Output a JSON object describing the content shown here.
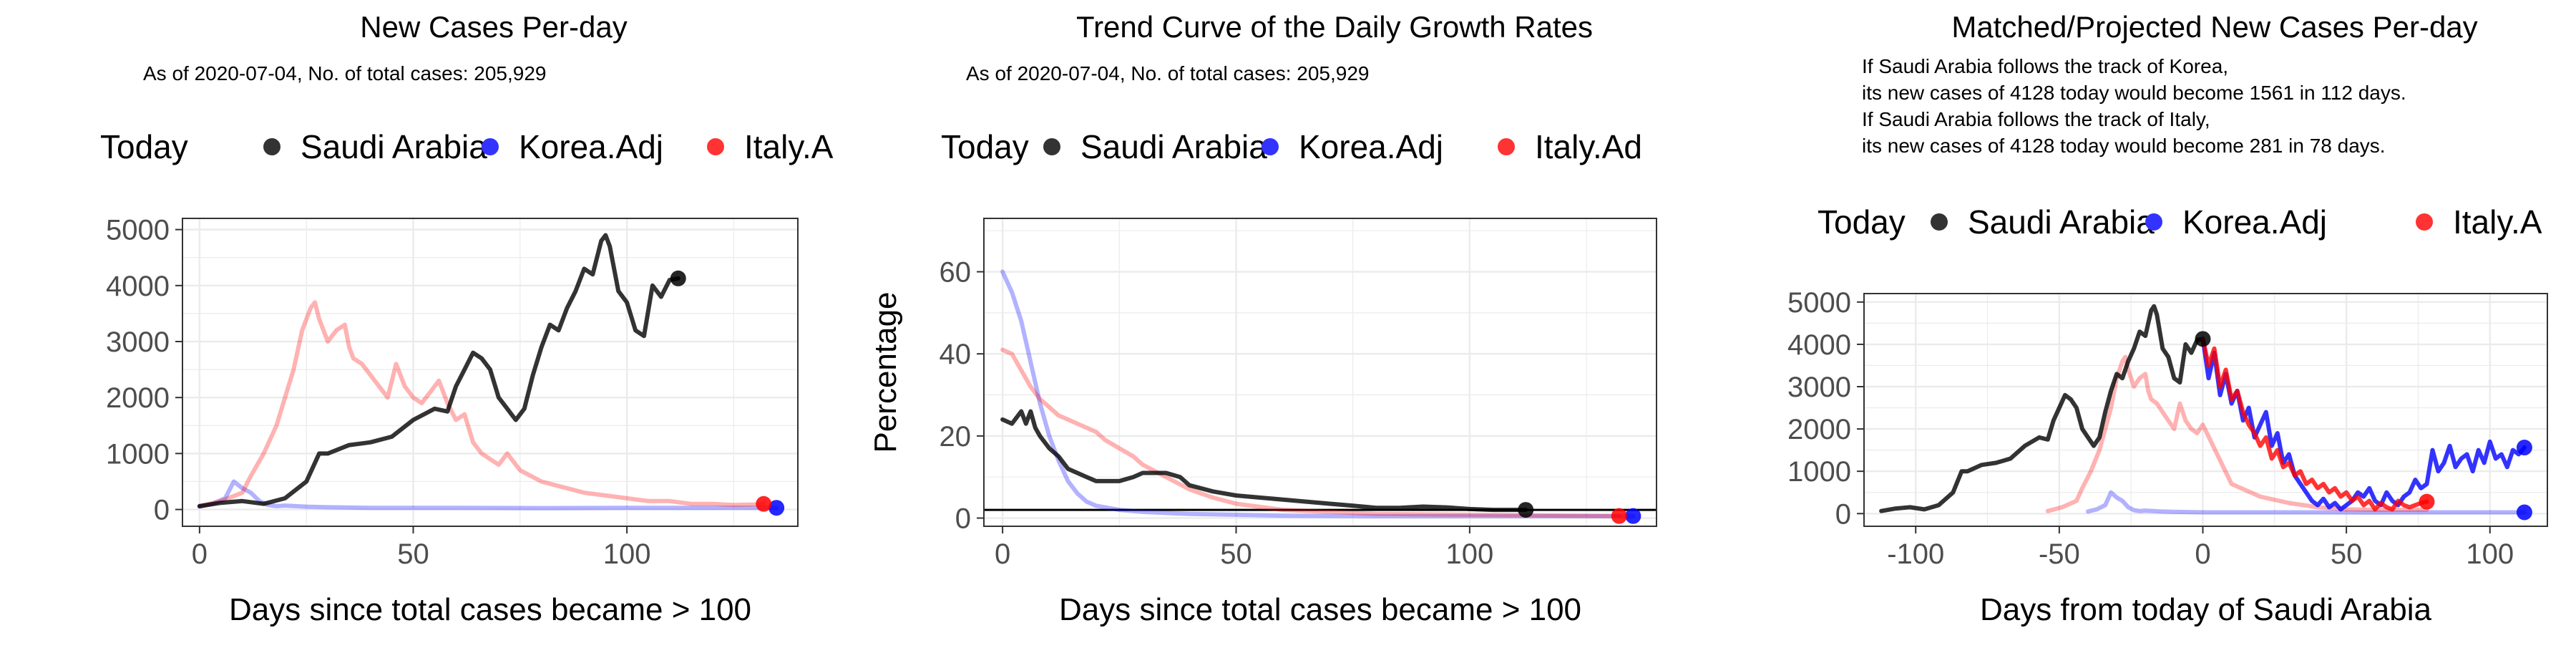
{
  "chart_data": [
    {
      "type": "line",
      "title": "New Cases Per-day",
      "subtitle": "As of 2020-07-04, No. of total cases: 205,929",
      "xlabel": "Days since total cases became > 100",
      "ylabel": "",
      "xlim": [
        -4,
        140
      ],
      "ylim": [
        -300,
        5200
      ],
      "xticks": [
        0,
        50,
        100
      ],
      "yticks": [
        0,
        1000,
        2000,
        3000,
        4000,
        5000
      ],
      "grid": true,
      "legend": {
        "position": "top",
        "title": "Today",
        "labels": [
          "Saudi Arabia",
          "Korea.Adj",
          "Italy.A"
        ]
      },
      "series": [
        {
          "name": "Saudi Arabia",
          "color": "#000000",
          "opacity": 0.8,
          "x": [
            0,
            5,
            10,
            15,
            20,
            25,
            28,
            30,
            35,
            40,
            45,
            50,
            55,
            58,
            60,
            62,
            64,
            66,
            68,
            70,
            72,
            74,
            76,
            78,
            80,
            82,
            84,
            86,
            88,
            90,
            92,
            94,
            95,
            96,
            98,
            100,
            102,
            104,
            106,
            108,
            110,
            112
          ],
          "y": [
            60,
            120,
            150,
            100,
            200,
            500,
            1000,
            1000,
            1150,
            1200,
            1300,
            1600,
            1800,
            1750,
            2200,
            2500,
            2800,
            2700,
            2500,
            2000,
            1800,
            1600,
            1800,
            2400,
            2900,
            3300,
            3200,
            3600,
            3900,
            4300,
            4200,
            4800,
            4900,
            4700,
            3900,
            3700,
            3200,
            3100,
            4000,
            3800,
            4100,
            4128
          ],
          "end_marker": {
            "x": 112,
            "y": 4128
          }
        },
        {
          "name": "Korea.Adj",
          "color": "#0000ff",
          "opacity": 0.3,
          "x": [
            0,
            3,
            6,
            8,
            10,
            12,
            14,
            16,
            18,
            20,
            25,
            30,
            40,
            50,
            60,
            80,
            100,
            120,
            135
          ],
          "y": [
            50,
            100,
            200,
            500,
            380,
            300,
            150,
            80,
            60,
            70,
            50,
            40,
            30,
            30,
            30,
            25,
            30,
            30,
            30
          ],
          "end_marker": {
            "x": 135,
            "y": 30
          }
        },
        {
          "name": "Italy.A",
          "color": "#ff0000",
          "opacity": 0.3,
          "x": [
            0,
            5,
            10,
            12,
            15,
            18,
            20,
            22,
            24,
            26,
            27,
            28,
            30,
            32,
            34,
            35,
            36,
            38,
            40,
            42,
            44,
            46,
            48,
            50,
            52,
            54,
            56,
            58,
            60,
            62,
            64,
            66,
            68,
            70,
            72,
            75,
            80,
            85,
            90,
            95,
            100,
            105,
            110,
            115,
            120,
            125,
            130,
            132
          ],
          "y": [
            60,
            150,
            300,
            600,
            1000,
            1500,
            2000,
            2500,
            3200,
            3600,
            3700,
            3400,
            3000,
            3200,
            3300,
            2900,
            2700,
            2600,
            2400,
            2200,
            2000,
            2600,
            2200,
            2000,
            1900,
            2100,
            2300,
            1900,
            1600,
            1700,
            1200,
            1000,
            900,
            800,
            1000,
            700,
            500,
            400,
            300,
            250,
            200,
            150,
            150,
            100,
            100,
            80,
            90,
            100
          ],
          "end_marker": {
            "x": 132,
            "y": 100
          }
        }
      ]
    },
    {
      "type": "line",
      "title": "Trend Curve of the Daily Growth Rates",
      "subtitle": "As of 2020-07-04, No. of total cases: 205,929",
      "xlabel": "Days since total cases became > 100",
      "ylabel": "Percentage",
      "xlim": [
        -4,
        140
      ],
      "ylim": [
        -2,
        73
      ],
      "xticks": [
        0,
        50,
        100
      ],
      "yticks": [
        0,
        20,
        40,
        60
      ],
      "reference_line": 2,
      "grid": true,
      "legend": {
        "position": "top",
        "title": "Today",
        "labels": [
          "Saudi Arabia",
          "Korea.Adj",
          "Italy.Ad"
        ]
      },
      "series": [
        {
          "name": "Saudi Arabia",
          "color": "#000000",
          "opacity": 0.8,
          "x": [
            0,
            2,
            4,
            5,
            6,
            7,
            8,
            10,
            12,
            14,
            16,
            18,
            20,
            22,
            25,
            28,
            30,
            32,
            35,
            38,
            40,
            45,
            50,
            55,
            60,
            65,
            70,
            75,
            80,
            85,
            90,
            95,
            100,
            105,
            110,
            112
          ],
          "y": [
            24,
            23,
            26,
            23,
            26,
            22,
            20,
            17,
            15,
            12,
            11,
            10,
            9,
            9,
            9,
            10,
            11,
            11,
            11,
            10,
            8,
            6.5,
            5.5,
            5,
            4.5,
            4,
            3.5,
            3,
            2.5,
            2.5,
            2.8,
            2.6,
            2.2,
            2,
            2,
            2
          ],
          "end_marker": {
            "x": 112,
            "y": 2
          }
        },
        {
          "name": "Korea.Adj",
          "color": "#0000ff",
          "opacity": 0.3,
          "x": [
            0,
            2,
            4,
            6,
            8,
            10,
            12,
            14,
            16,
            18,
            20,
            25,
            30,
            40,
            60,
            80,
            100,
            120,
            135
          ],
          "y": [
            60,
            55,
            48,
            38,
            28,
            20,
            14,
            9,
            6,
            4,
            3,
            2,
            1.5,
            1,
            0.6,
            0.5,
            0.5,
            0.5,
            0.5
          ],
          "end_marker": {
            "x": 135,
            "y": 0.5
          }
        },
        {
          "name": "Italy.Ad",
          "color": "#ff0000",
          "opacity": 0.3,
          "x": [
            0,
            2,
            4,
            6,
            8,
            10,
            12,
            14,
            16,
            18,
            20,
            22,
            25,
            28,
            30,
            35,
            40,
            45,
            50,
            60,
            70,
            80,
            100,
            120,
            132
          ],
          "y": [
            41,
            40,
            36,
            32,
            29,
            27,
            25,
            24,
            23,
            22,
            21,
            19,
            17,
            15,
            13,
            10,
            7,
            5,
            3.5,
            2,
            1.5,
            1,
            0.8,
            0.6,
            0.5
          ],
          "end_marker": {
            "x": 132,
            "y": 0.5
          }
        }
      ]
    },
    {
      "type": "line",
      "title": "Matched/Projected New Cases Per-day",
      "annotations": [
        "If Saudi Arabia follows the track of Korea,",
        "its new cases of 4128 today would become 1561 in 112 days.",
        "If Saudi Arabia follows the track of Italy,",
        "its new cases of 4128 today would become 281 in 78 days."
      ],
      "xlabel": "Days from today of Saudi Arabia",
      "ylabel": "",
      "xlim": [
        -118,
        120
      ],
      "ylim": [
        -300,
        5200
      ],
      "xticks": [
        -100,
        -50,
        0,
        50,
        100
      ],
      "yticks": [
        0,
        1000,
        2000,
        3000,
        4000,
        5000
      ],
      "grid": true,
      "legend": {
        "position": "top",
        "title": "Today",
        "labels": [
          "Saudi Arabia",
          "Korea.Adj",
          "Italy.A"
        ]
      },
      "series": [
        {
          "name": "Saudi Arabia",
          "color": "#000000",
          "opacity": 0.8,
          "x": [
            -112,
            -107,
            -102,
            -97,
            -92,
            -87,
            -84,
            -82,
            -77,
            -72,
            -67,
            -62,
            -57,
            -54,
            -52,
            -50,
            -48,
            -46,
            -44,
            -42,
            -40,
            -38,
            -36,
            -34,
            -32,
            -30,
            -28,
            -26,
            -24,
            -22,
            -20,
            -18,
            -17,
            -16,
            -14,
            -12,
            -10,
            -8,
            -6,
            -4,
            -2,
            0
          ],
          "y": [
            60,
            120,
            150,
            100,
            200,
            500,
            1000,
            1000,
            1150,
            1200,
            1300,
            1600,
            1800,
            1750,
            2200,
            2500,
            2800,
            2700,
            2500,
            2000,
            1800,
            1600,
            1800,
            2400,
            2900,
            3300,
            3200,
            3600,
            3900,
            4300,
            4200,
            4800,
            4900,
            4700,
            3900,
            3700,
            3200,
            3100,
            4000,
            3800,
            4100,
            4128
          ],
          "end_marker": {
            "x": 0,
            "y": 4128
          }
        },
        {
          "name": "Korea.Adj history",
          "color": "#0000ff",
          "opacity": 0.3,
          "x": [
            -40,
            -37,
            -34,
            -32,
            -30,
            -28,
            -26,
            -24,
            -22,
            -20,
            -15,
            -10,
            0,
            20,
            40,
            60,
            80,
            100,
            112
          ],
          "y": [
            50,
            100,
            200,
            500,
            380,
            300,
            150,
            80,
            60,
            70,
            50,
            40,
            30,
            30,
            30,
            25,
            30,
            30,
            30
          ],
          "end_marker": {
            "x": 112,
            "y": 30
          }
        },
        {
          "name": "Italy.A history",
          "color": "#ff0000",
          "opacity": 0.3,
          "x": [
            -54,
            -49,
            -44,
            -42,
            -39,
            -36,
            -34,
            -32,
            -30,
            -28,
            -27,
            -26,
            -24,
            -22,
            -20,
            -19,
            -18,
            -16,
            -14,
            -12,
            -10,
            -8,
            -6,
            -4,
            -2,
            0,
            10,
            20,
            30,
            40,
            50,
            60,
            70,
            78
          ],
          "y": [
            60,
            150,
            300,
            600,
            1000,
            1500,
            2000,
            2500,
            3200,
            3600,
            3700,
            3400,
            3000,
            3200,
            3300,
            2900,
            2700,
            2600,
            2400,
            2200,
            2000,
            2600,
            2200,
            2000,
            1900,
            2100,
            700,
            400,
            250,
            150,
            100,
            90,
            90,
            90
          ]
        },
        {
          "name": "Korea.Adj projected",
          "color": "#0000ff",
          "opacity": 0.8,
          "x": [
            0,
            2,
            4,
            6,
            8,
            10,
            12,
            14,
            16,
            18,
            20,
            22,
            24,
            26,
            28,
            30,
            32,
            34,
            36,
            38,
            40,
            42,
            44,
            46,
            48,
            50,
            52,
            54,
            56,
            58,
            60,
            62,
            64,
            66,
            68,
            70,
            72,
            74,
            76,
            78,
            80,
            82,
            84,
            86,
            88,
            90,
            92,
            94,
            96,
            98,
            100,
            102,
            104,
            106,
            108,
            110,
            112
          ],
          "y": [
            4128,
            3200,
            3800,
            2800,
            3300,
            2600,
            2900,
            2200,
            2500,
            1800,
            2100,
            2400,
            1600,
            1900,
            1200,
            1400,
            900,
            700,
            500,
            300,
            200,
            350,
            150,
            250,
            100,
            200,
            300,
            500,
            400,
            600,
            300,
            200,
            500,
            300,
            200,
            400,
            500,
            800,
            600,
            700,
            1500,
            1000,
            1200,
            1600,
            1100,
            1300,
            1400,
            1000,
            1500,
            1200,
            1700,
            1300,
            1400,
            1100,
            1500,
            1400,
            1561
          ],
          "end_marker": {
            "x": 112,
            "y": 1561
          }
        },
        {
          "name": "Italy.A projected",
          "color": "#ff0000",
          "opacity": 0.8,
          "x": [
            0,
            2,
            4,
            6,
            8,
            10,
            12,
            14,
            16,
            18,
            20,
            22,
            24,
            26,
            28,
            30,
            32,
            34,
            36,
            38,
            40,
            42,
            44,
            46,
            48,
            50,
            52,
            54,
            56,
            58,
            60,
            62,
            64,
            66,
            68,
            70,
            72,
            74,
            76,
            78
          ],
          "y": [
            4128,
            3500,
            3900,
            3000,
            3400,
            2700,
            2900,
            2400,
            2100,
            1900,
            1600,
            1800,
            1300,
            1500,
            1100,
            1200,
            900,
            1000,
            700,
            800,
            600,
            700,
            500,
            600,
            400,
            500,
            300,
            400,
            200,
            300,
            100,
            250,
            150,
            100,
            300,
            200,
            150,
            200,
            250,
            281
          ],
          "end_marker": {
            "x": 78,
            "y": 281
          }
        }
      ]
    }
  ]
}
